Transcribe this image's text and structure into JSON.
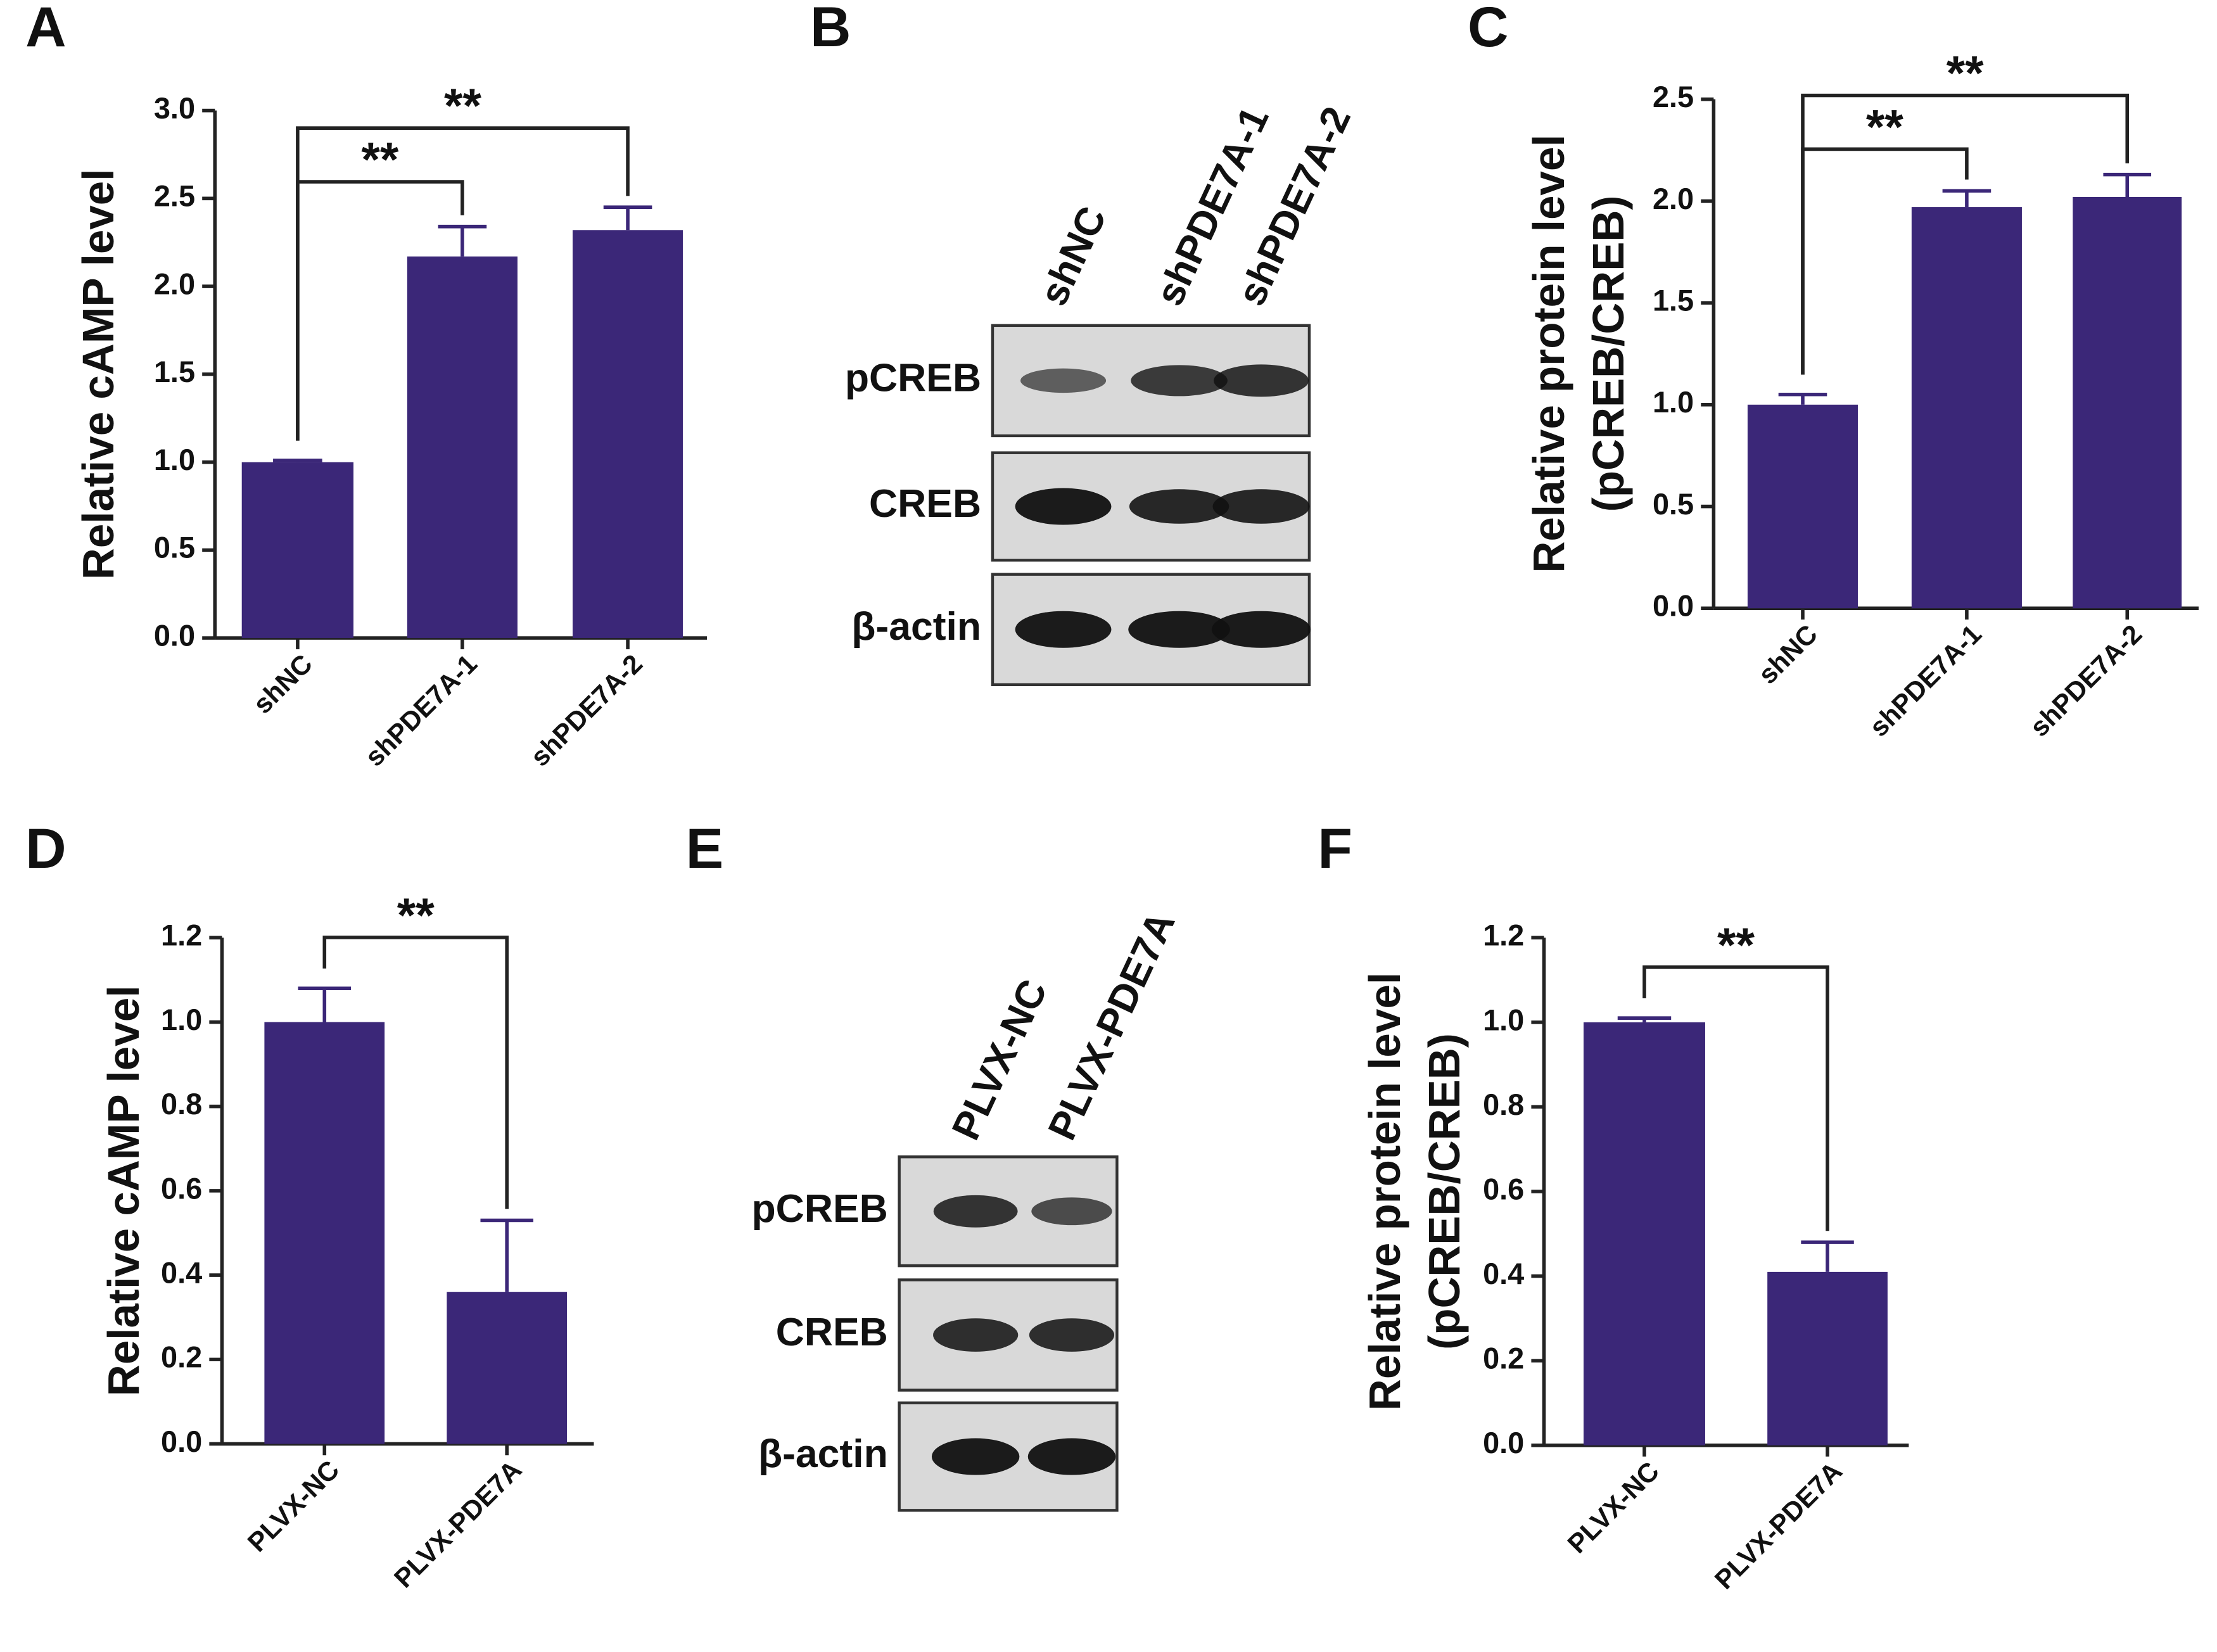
{
  "chart_data": [
    {
      "panel": "A",
      "type": "bar",
      "y_label": [
        "Relative cAMP level"
      ],
      "categories": [
        "shNC",
        "shPDE7A-1",
        "shPDE7A-2"
      ],
      "values": [
        1.0,
        2.17,
        2.32
      ],
      "errors": [
        0.01,
        0.17,
        0.13
      ],
      "color": "#3b2778",
      "ylim": [
        0,
        3
      ],
      "yticks": [
        {
          "value": 0,
          "label": "0.0"
        },
        0.5,
        {
          "value": 1,
          "label": "1.0"
        },
        1.5,
        {
          "value": 2,
          "label": "2.0"
        },
        2.5,
        {
          "value": 3,
          "label": "3.0"
        }
      ],
      "significance": [
        "**",
        "**"
      ]
    },
    {
      "panel": "C",
      "type": "bar",
      "y_label": [
        "Relative protein level",
        "(pCREB/CREB)"
      ],
      "categories": [
        "shNC",
        "shPDE7A-1",
        "shPDE7A-2"
      ],
      "values": [
        1.0,
        1.97,
        2.02
      ],
      "errors": [
        0.05,
        0.08,
        0.11
      ],
      "color": "#3b2778",
      "ylim": [
        0,
        2.5
      ],
      "yticks": [
        {
          "value": 0,
          "label": "0.0"
        },
        0.5,
        {
          "value": 1,
          "label": "1.0"
        },
        1.5,
        {
          "value": 2,
          "label": "2.0"
        },
        2.5
      ],
      "significance": [
        "**",
        "**"
      ]
    },
    {
      "panel": "D",
      "type": "bar",
      "y_label": [
        "Relative cAMP level"
      ],
      "categories": [
        "PLVX-NC",
        "PLVX-PDE7A"
      ],
      "values": [
        1.0,
        0.36
      ],
      "errors": [
        0.08,
        0.17
      ],
      "color": "#3b2778",
      "ylim": [
        0,
        1.2
      ],
      "yticks": [
        {
          "value": 0,
          "label": "0.0"
        },
        0.2,
        0.4,
        0.6,
        0.8,
        {
          "value": 1,
          "label": "1.0"
        },
        1.2
      ],
      "significance": [
        "**"
      ]
    },
    {
      "panel": "F",
      "type": "bar",
      "y_label": [
        "Relative protein level",
        "(pCREB/CREB)"
      ],
      "categories": [
        "PLVX-NC",
        "PLVX-PDE7A"
      ],
      "values": [
        1.0,
        0.41
      ],
      "errors": [
        0.01,
        0.07
      ],
      "color": "#3b2778",
      "ylim": [
        0,
        1.2
      ],
      "yticks": [
        {
          "value": 0,
          "label": "0.0"
        },
        0.2,
        0.4,
        0.6,
        0.8,
        {
          "value": 1,
          "label": "1.0"
        },
        1.2
      ],
      "significance": [
        "**"
      ]
    }
  ],
  "blots": [
    {
      "panel": "B",
      "lanes": [
        "shNC",
        "shPDE7A-1",
        "shPDE7A-2"
      ],
      "rows": [
        "pCREB",
        "CREB",
        "β-actin"
      ]
    },
    {
      "panel": "E",
      "lanes": [
        "PLVX-NC",
        "PLVX-PDE7A"
      ],
      "rows": [
        "pCREB",
        "CREB",
        "β-actin"
      ]
    }
  ]
}
